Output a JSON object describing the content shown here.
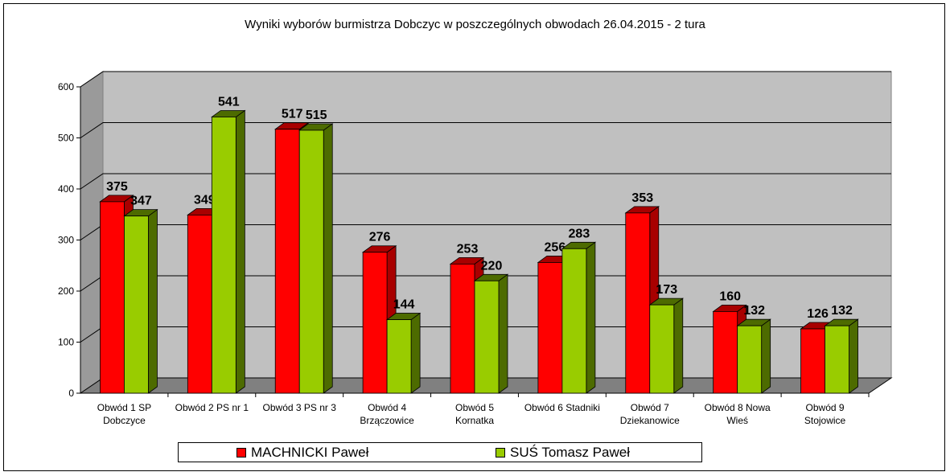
{
  "chart_data": {
    "type": "bar",
    "title": "Wyniki wyborów burmistrza Dobczyc w poszczególnych obwodach 26.04.2015 - 2 tura",
    "categories": [
      [
        "Obwód 1 SP",
        "Dobczyce"
      ],
      [
        "Obwód 2 PS nr 1"
      ],
      [
        "Obwód 3 PS nr 3"
      ],
      [
        "Obwód 4",
        "Brzączowice"
      ],
      [
        "Obwód 5",
        "Kornatka"
      ],
      [
        "Obwód 6 Stadniki"
      ],
      [
        "Obwód 7",
        "Dziekanowice"
      ],
      [
        "Obwód 8 Nowa",
        "Wieś"
      ],
      [
        "Obwód 9",
        "Stojowice"
      ]
    ],
    "series": [
      {
        "name": "MACHNICKI Paweł",
        "color": "#ff0000",
        "shade": "#a80000",
        "values": [
          375,
          349,
          517,
          276,
          253,
          256,
          353,
          160,
          126
        ]
      },
      {
        "name": "SUŚ Tomasz Paweł",
        "color": "#99cc00",
        "shade": "#4d6b00",
        "values": [
          347,
          541,
          515,
          144,
          220,
          283,
          173,
          132,
          132
        ]
      }
    ],
    "ylim": [
      0,
      600
    ],
    "yticks": [
      0,
      100,
      200,
      300,
      400,
      500,
      600
    ],
    "xlabel": "",
    "ylabel": "",
    "grid": true,
    "legend_position": "bottom",
    "plot_background": "#c0c0c0"
  }
}
